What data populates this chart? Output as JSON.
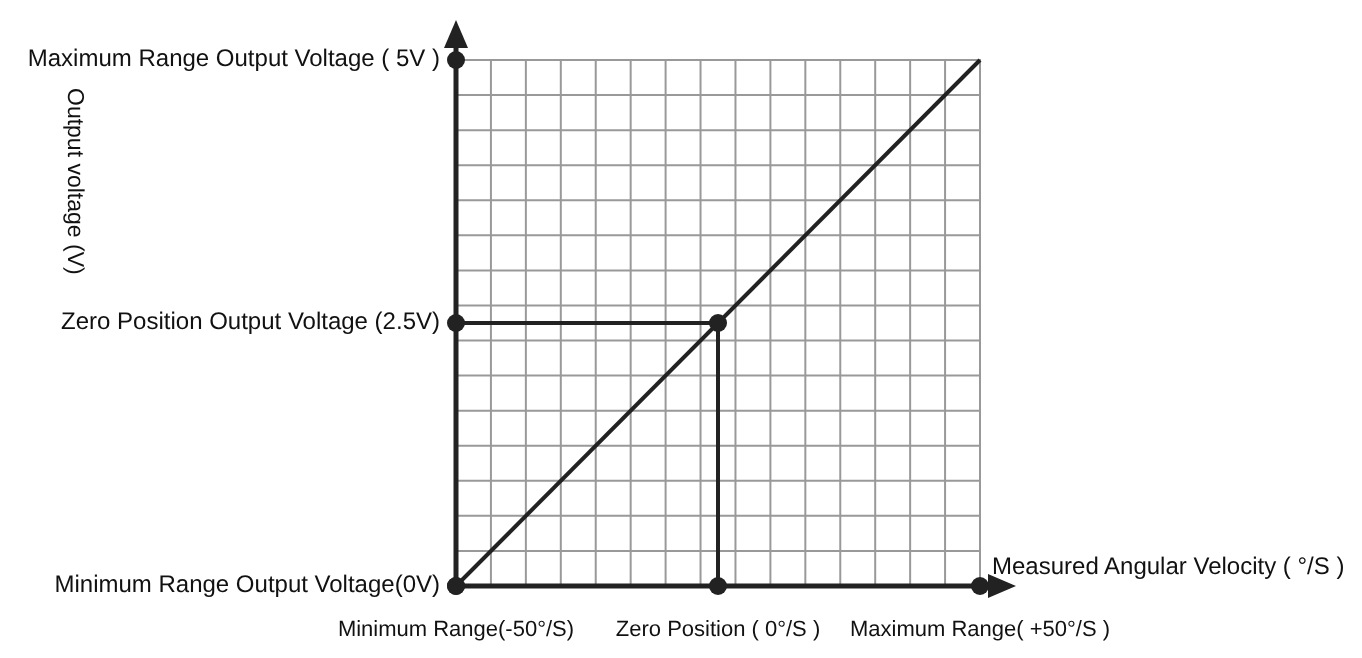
{
  "chart_data": {
    "type": "line",
    "xlabel": "Measured Angular Velocity ( °/S )",
    "ylabel": "Output voltage (V)",
    "xlim": [
      -50,
      50
    ],
    "ylim": [
      0,
      5
    ],
    "xticks": [
      {
        "value": -50,
        "label": "Minimum Range(-50°/S)"
      },
      {
        "value": 0,
        "label": "Zero Position ( 0°/S )"
      },
      {
        "value": 50,
        "label": "Maximum Range( +50°/S )"
      }
    ],
    "yticks": [
      {
        "value": 0,
        "label": "Minimum Range Output Voltage(0V)"
      },
      {
        "value": 2.5,
        "label": "Zero Position Output Voltage  (2.5V)"
      },
      {
        "value": 5,
        "label": "Maximum Range Output Voltage ( 5V )"
      }
    ],
    "grid": true,
    "series": [
      {
        "color": "#222222",
        "x": [
          -50,
          50
        ],
        "values": [
          0,
          5
        ]
      },
      {
        "color": "#222222",
        "x": [
          -50,
          0,
          0
        ],
        "values": [
          2.5,
          2.5,
          0
        ]
      },
      {
        "type": "scatter",
        "color": "#222222",
        "x": [
          0
        ],
        "values": [
          2.5
        ],
        "marker": "circle"
      }
    ]
  }
}
